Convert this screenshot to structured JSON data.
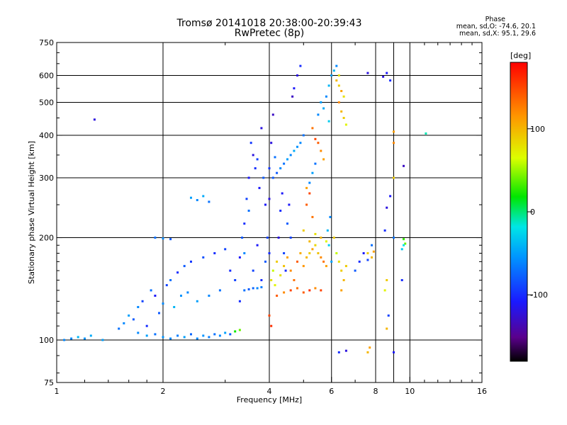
{
  "header": {
    "title": "Tromsø 20141018 20:38:00-20:39:43",
    "subtitle": "RwPretec (8p)"
  },
  "stats": {
    "heading": "Phase",
    "line_o": "mean, sd,O: -74.6, 20.1",
    "line_x": "mean, sd,X:  95.1, 29.6"
  },
  "colorbar": {
    "unit": "[deg]",
    "ticks": [
      "100",
      "0",
      "-100"
    ],
    "tick_values": [
      100,
      0,
      -100
    ],
    "range": [
      -180,
      180
    ]
  },
  "chart_data": {
    "type": "scatter",
    "title": "Tromsø 20141018 20:38:00-20:39:43",
    "subtitle": "RwPretec (8p)",
    "xlabel": "Frequency [MHz]",
    "ylabel": "Stationary phase Virtual Height [km]",
    "x_scale": "log",
    "y_scale": "log",
    "xlim": [
      1,
      16
    ],
    "ylim": [
      75,
      750
    ],
    "x_ticks": [
      1,
      2,
      4,
      6,
      8,
      10,
      16
    ],
    "x_tick_labels": [
      "1",
      "2",
      "4",
      "6",
      "8",
      "10",
      "16"
    ],
    "y_ticks": [
      75,
      100,
      200,
      300,
      400,
      500,
      600,
      750
    ],
    "y_tick_labels": [
      "75",
      "100",
      "200",
      "300",
      "400",
      "500",
      "600",
      "750"
    ],
    "grid": true,
    "color_by": "Phase [deg]",
    "points_format": [
      "frequency_MHz",
      "height_km",
      "phase_deg"
    ],
    "points": [
      [
        1.05,
        100,
        -60
      ],
      [
        1.1,
        101,
        -60
      ],
      [
        1.15,
        102,
        -40
      ],
      [
        1.2,
        101,
        -55
      ],
      [
        1.25,
        103,
        -45
      ],
      [
        1.35,
        100,
        -50
      ],
      [
        1.28,
        445,
        -120
      ],
      [
        1.5,
        108,
        -70
      ],
      [
        1.55,
        112,
        -60
      ],
      [
        1.6,
        118,
        -50
      ],
      [
        1.65,
        115,
        -80
      ],
      [
        1.7,
        125,
        -60
      ],
      [
        1.75,
        130,
        -90
      ],
      [
        1.8,
        110,
        -100
      ],
      [
        1.85,
        140,
        -70
      ],
      [
        1.9,
        135,
        -110
      ],
      [
        1.95,
        120,
        -80
      ],
      [
        2.0,
        128,
        -60
      ],
      [
        2.05,
        145,
        -90
      ],
      [
        2.1,
        150,
        -70
      ],
      [
        2.15,
        125,
        -40
      ],
      [
        2.2,
        158,
        -100
      ],
      [
        2.25,
        135,
        -55
      ],
      [
        2.3,
        165,
        -80
      ],
      [
        2.35,
        138,
        -60
      ],
      [
        2.4,
        170,
        -95
      ],
      [
        2.5,
        130,
        -50
      ],
      [
        2.6,
        175,
        -85
      ],
      [
        2.7,
        135,
        -60
      ],
      [
        2.8,
        180,
        -100
      ],
      [
        2.9,
        140,
        -70
      ],
      [
        3.0,
        185,
        -90
      ],
      [
        1.7,
        105,
        -60
      ],
      [
        1.8,
        103,
        -50
      ],
      [
        1.9,
        104,
        -70
      ],
      [
        2.0,
        102,
        -55
      ],
      [
        2.1,
        101,
        -60
      ],
      [
        2.2,
        103,
        -65
      ],
      [
        2.3,
        102,
        -50
      ],
      [
        2.4,
        104,
        -75
      ],
      [
        2.5,
        101,
        -60
      ],
      [
        2.6,
        103,
        -55
      ],
      [
        2.7,
        102,
        -65
      ],
      [
        2.8,
        104,
        -70
      ],
      [
        2.9,
        103,
        -60
      ],
      [
        3.0,
        105,
        -50
      ],
      [
        3.1,
        104,
        -80
      ],
      [
        3.2,
        106,
        20
      ],
      [
        3.3,
        107,
        40
      ],
      [
        1.9,
        200,
        -70
      ],
      [
        2.0,
        199,
        -60
      ],
      [
        2.1,
        198,
        -80
      ],
      [
        2.4,
        262,
        -50
      ],
      [
        2.5,
        258,
        -60
      ],
      [
        2.6,
        265,
        -45
      ],
      [
        2.7,
        255,
        -70
      ],
      [
        3.1,
        160,
        -100
      ],
      [
        3.2,
        150,
        -90
      ],
      [
        3.3,
        175,
        -110
      ],
      [
        3.35,
        200,
        -80
      ],
      [
        3.4,
        220,
        -100
      ],
      [
        3.45,
        260,
        -90
      ],
      [
        3.5,
        300,
        -110
      ],
      [
        3.55,
        380,
        -95
      ],
      [
        3.6,
        350,
        -120
      ],
      [
        3.65,
        320,
        -100
      ],
      [
        3.7,
        340,
        -90
      ],
      [
        3.75,
        280,
        -110
      ],
      [
        3.8,
        420,
        -120
      ],
      [
        3.85,
        300,
        -80
      ],
      [
        3.9,
        250,
        -110
      ],
      [
        3.95,
        200,
        -90
      ],
      [
        3.4,
        140,
        -70
      ],
      [
        3.5,
        141,
        -80
      ],
      [
        3.6,
        142,
        -75
      ],
      [
        3.7,
        142,
        -60
      ],
      [
        3.8,
        143,
        -65
      ],
      [
        3.3,
        130,
        -100
      ],
      [
        3.4,
        180,
        -60
      ],
      [
        3.5,
        240,
        -70
      ],
      [
        3.6,
        160,
        -90
      ],
      [
        3.7,
        190,
        -110
      ],
      [
        3.8,
        150,
        -100
      ],
      [
        3.9,
        170,
        -80
      ],
      [
        4.0,
        180,
        -100
      ],
      [
        4.0,
        260,
        -120
      ],
      [
        4.0,
        320,
        -95
      ],
      [
        4.05,
        380,
        -120
      ],
      [
        4.1,
        460,
        -130
      ],
      [
        4.1,
        300,
        -80
      ],
      [
        4.15,
        345,
        -70
      ],
      [
        4.2,
        310,
        -80
      ],
      [
        4.3,
        320,
        -60
      ],
      [
        4.4,
        330,
        -70
      ],
      [
        4.5,
        340,
        -50
      ],
      [
        4.6,
        350,
        -60
      ],
      [
        4.7,
        360,
        -45
      ],
      [
        4.8,
        370,
        -55
      ],
      [
        4.9,
        380,
        -60
      ],
      [
        5.0,
        400,
        -70
      ],
      [
        4.25,
        200,
        -120
      ],
      [
        4.3,
        240,
        -100
      ],
      [
        4.35,
        270,
        -110
      ],
      [
        4.4,
        180,
        -90
      ],
      [
        4.45,
        160,
        -100
      ],
      [
        4.5,
        220,
        -80
      ],
      [
        4.55,
        250,
        -110
      ],
      [
        4.6,
        200,
        -90
      ],
      [
        4.65,
        520,
        -130
      ],
      [
        4.7,
        550,
        -110
      ],
      [
        4.8,
        600,
        -120
      ],
      [
        4.9,
        640,
        -100
      ],
      [
        4.05,
        150,
        80
      ],
      [
        4.1,
        160,
        60
      ],
      [
        4.15,
        145,
        70
      ],
      [
        4.2,
        170,
        90
      ],
      [
        4.3,
        155,
        80
      ],
      [
        4.4,
        165,
        95
      ],
      [
        4.5,
        175,
        110
      ],
      [
        4.6,
        160,
        120
      ],
      [
        4.7,
        150,
        130
      ],
      [
        4.8,
        170,
        140
      ],
      [
        4.9,
        180,
        105
      ],
      [
        5.0,
        165,
        115
      ],
      [
        5.1,
        175,
        100
      ],
      [
        5.2,
        180,
        90
      ],
      [
        5.3,
        185,
        110
      ],
      [
        5.4,
        190,
        85
      ],
      [
        5.5,
        180,
        95
      ],
      [
        5.6,
        175,
        120
      ],
      [
        5.7,
        170,
        130
      ],
      [
        5.8,
        165,
        110
      ],
      [
        4.2,
        135,
        140
      ],
      [
        4.4,
        138,
        120
      ],
      [
        4.6,
        140,
        150
      ],
      [
        4.8,
        142,
        130
      ],
      [
        5.0,
        138,
        140
      ],
      [
        5.2,
        140,
        160
      ],
      [
        5.4,
        142,
        120
      ],
      [
        5.6,
        140,
        150
      ],
      [
        4.0,
        118,
        150
      ],
      [
        4.05,
        110,
        160
      ],
      [
        5.1,
        250,
        140
      ],
      [
        5.2,
        270,
        150
      ],
      [
        5.3,
        230,
        130
      ],
      [
        5.1,
        280,
        110
      ],
      [
        5.3,
        420,
        130
      ],
      [
        5.4,
        390,
        150
      ],
      [
        5.5,
        380,
        140
      ],
      [
        5.6,
        360,
        120
      ],
      [
        5.7,
        340,
        110
      ],
      [
        5.0,
        210,
        90
      ],
      [
        5.2,
        195,
        100
      ],
      [
        5.4,
        205,
        80
      ],
      [
        5.6,
        200,
        100
      ],
      [
        5.8,
        195,
        70
      ],
      [
        5.2,
        290,
        -60
      ],
      [
        5.3,
        310,
        -50
      ],
      [
        5.4,
        330,
        -70
      ],
      [
        5.5,
        460,
        -60
      ],
      [
        5.6,
        500,
        -50
      ],
      [
        5.7,
        480,
        -45
      ],
      [
        5.8,
        520,
        -60
      ],
      [
        5.9,
        560,
        -40
      ],
      [
        6.0,
        600,
        -50
      ],
      [
        6.1,
        620,
        -40
      ],
      [
        6.2,
        640,
        -60
      ],
      [
        5.9,
        440,
        -30
      ],
      [
        5.85,
        210,
        -40
      ],
      [
        5.9,
        190,
        -30
      ],
      [
        6.0,
        170,
        -50
      ],
      [
        5.95,
        230,
        -60
      ],
      [
        6.2,
        580,
        100
      ],
      [
        6.3,
        560,
        90
      ],
      [
        6.4,
        540,
        110
      ],
      [
        6.5,
        520,
        80
      ],
      [
        6.3,
        500,
        120
      ],
      [
        6.4,
        470,
        100
      ],
      [
        6.5,
        450,
        90
      ],
      [
        6.6,
        430,
        70
      ],
      [
        6.3,
        600,
        80
      ],
      [
        6.2,
        180,
        60
      ],
      [
        6.3,
        170,
        80
      ],
      [
        6.4,
        160,
        90
      ],
      [
        6.5,
        150,
        100
      ],
      [
        6.6,
        165,
        90
      ],
      [
        6.1,
        200,
        90
      ],
      [
        6.4,
        140,
        110
      ],
      [
        6.3,
        92,
        -100
      ],
      [
        6.6,
        93,
        -120
      ],
      [
        7.0,
        160,
        -80
      ],
      [
        7.2,
        170,
        -100
      ],
      [
        7.4,
        180,
        -110
      ],
      [
        7.6,
        172,
        -90
      ],
      [
        7.8,
        190,
        -70
      ],
      [
        7.6,
        180,
        90
      ],
      [
        7.8,
        175,
        100
      ],
      [
        7.9,
        182,
        110
      ],
      [
        7.6,
        92,
        100
      ],
      [
        7.7,
        95,
        110
      ],
      [
        7.6,
        610,
        -120
      ],
      [
        8.4,
        595,
        -120
      ],
      [
        8.6,
        610,
        -110
      ],
      [
        8.8,
        580,
        -100
      ],
      [
        9.0,
        410,
        110
      ],
      [
        9.0,
        380,
        120
      ],
      [
        9.0,
        300,
        90
      ],
      [
        9.6,
        325,
        -130
      ],
      [
        8.8,
        265,
        -110
      ],
      [
        8.6,
        245,
        -120
      ],
      [
        8.5,
        210,
        -100
      ],
      [
        9.0,
        200,
        -70
      ],
      [
        9.6,
        198,
        30
      ],
      [
        9.7,
        192,
        40
      ],
      [
        9.6,
        190,
        -20
      ],
      [
        9.5,
        185,
        -30
      ],
      [
        8.6,
        150,
        90
      ],
      [
        8.5,
        140,
        70
      ],
      [
        8.6,
        108,
        100
      ],
      [
        9.0,
        92,
        -110
      ],
      [
        8.7,
        118,
        -90
      ],
      [
        9.5,
        150,
        -100
      ],
      [
        11.1,
        405,
        -10
      ]
    ]
  }
}
